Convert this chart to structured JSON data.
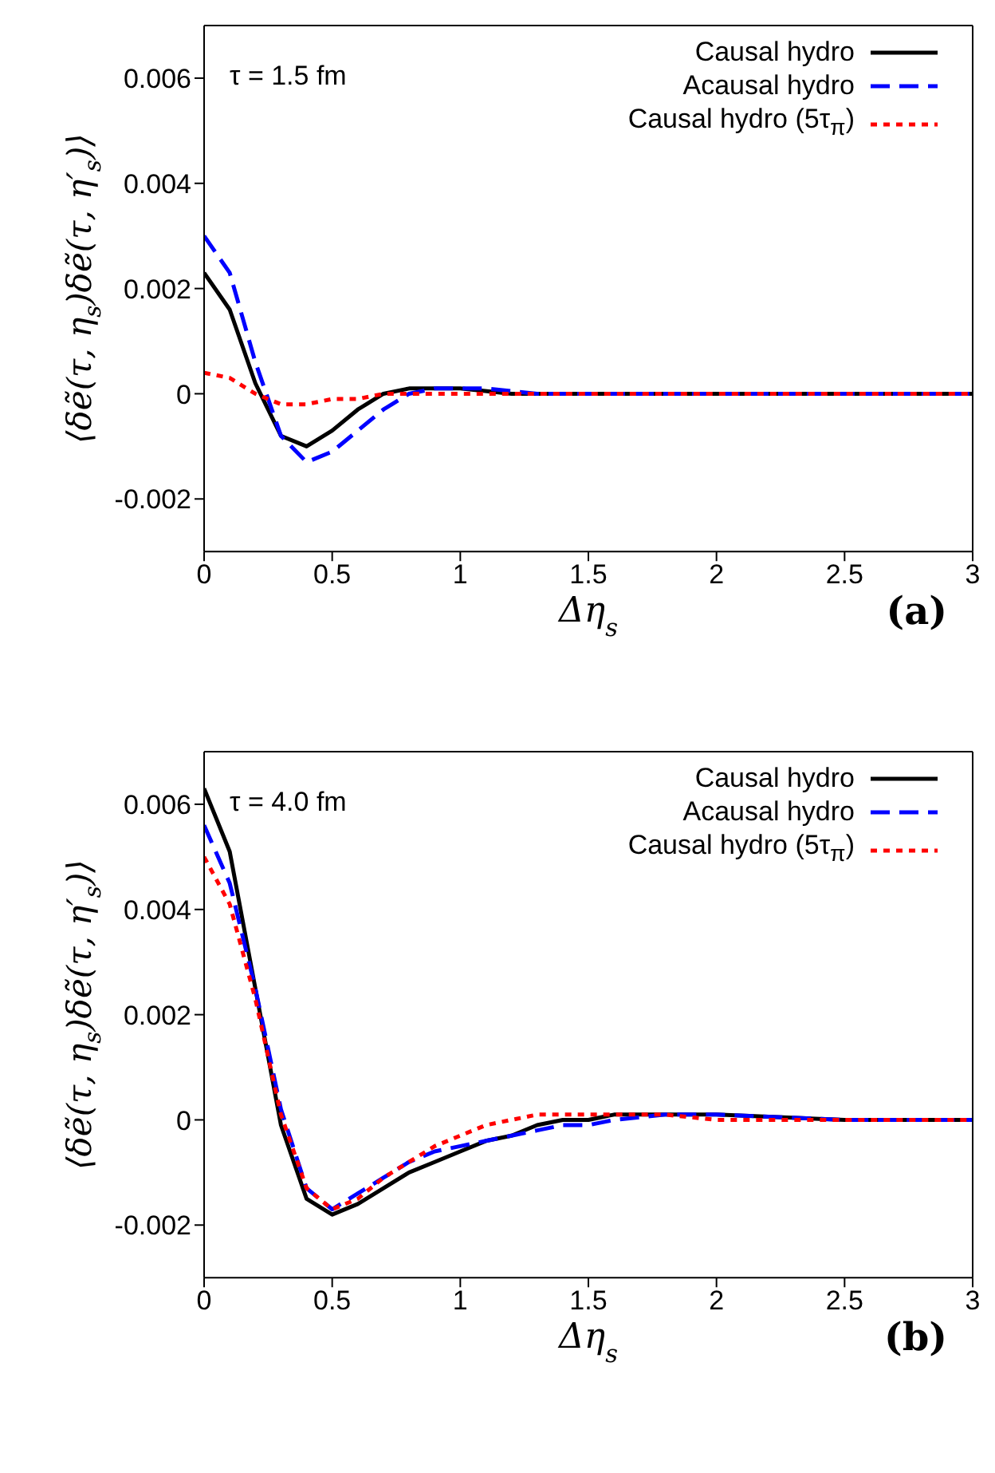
{
  "chart_data": [
    {
      "type": "line",
      "xlabel": "Δη$_{s}$",
      "ylabel": "⟨δẽ(τ, η$_{s}$)δẽ(τ, η′$_{s}$)⟩",
      "annotations": [
        "τ = 1.5 fm",
        "(a)"
      ],
      "xlim": [
        0,
        3
      ],
      "ylim": [
        -0.003,
        0.007
      ],
      "xticks": [
        0,
        0.5,
        1,
        1.5,
        2,
        2.5,
        3
      ],
      "yticks": [
        -0.002,
        0,
        0.002,
        0.004,
        0.006
      ],
      "grid": false,
      "legend": "top right",
      "marker": "none",
      "series": [
        {
          "name": "Causal hydro",
          "color": "#000000",
          "line_style": "solid",
          "x": [
            0,
            0.1,
            0.2,
            0.3,
            0.4,
            0.5,
            0.6,
            0.7,
            0.8,
            0.9,
            1.0,
            1.2,
            1.5,
            2,
            2.5,
            3
          ],
          "values": [
            0.0023,
            0.0016,
            0.0002,
            -0.0008,
            -0.001,
            -0.0007,
            -0.0003,
            0,
            0.0001,
            0.0001,
            0.0001,
            0,
            0,
            0,
            0,
            0
          ]
        },
        {
          "name": "Acausal hydro",
          "color": "#0000ff",
          "line_style": "dashed",
          "x": [
            0,
            0.1,
            0.2,
            0.3,
            0.4,
            0.5,
            0.6,
            0.7,
            0.8,
            0.9,
            1.0,
            1.1,
            1.3,
            1.5,
            2,
            2.5,
            3
          ],
          "values": [
            0.003,
            0.0023,
            0.0006,
            -0.0008,
            -0.0013,
            -0.0011,
            -0.0007,
            -0.0003,
            0,
            0.0001,
            0.0001,
            0.0001,
            0,
            0,
            0,
            0,
            0
          ]
        },
        {
          "name": "Causal hydro (5τ$_{π}$)",
          "color": "#ff0000",
          "line_style": "dotted",
          "x": [
            0,
            0.1,
            0.2,
            0.3,
            0.4,
            0.5,
            0.6,
            0.7,
            0.8,
            1.0,
            1.5,
            2,
            2.5,
            3
          ],
          "values": [
            0.0004,
            0.0003,
            0,
            -0.0002,
            -0.0002,
            -0.0001,
            -0.0001,
            0,
            0,
            0,
            0,
            0,
            0,
            0
          ]
        }
      ]
    },
    {
      "type": "line",
      "xlabel": "Δη$_{s}$",
      "ylabel": "⟨δẽ(τ, η$_{s}$)δẽ(τ, η′$_{s}$)⟩",
      "annotations": [
        "τ = 4.0 fm",
        "(b)"
      ],
      "xlim": [
        0,
        3
      ],
      "ylim": [
        -0.003,
        0.007
      ],
      "xticks": [
        0,
        0.5,
        1,
        1.5,
        2,
        2.5,
        3
      ],
      "yticks": [
        -0.002,
        0,
        0.002,
        0.004,
        0.006
      ],
      "grid": false,
      "legend": "top right",
      "marker": "none",
      "series": [
        {
          "name": "Causal hydro",
          "color": "#000000",
          "line_style": "solid",
          "x": [
            0,
            0.1,
            0.2,
            0.3,
            0.4,
            0.5,
            0.6,
            0.7,
            0.8,
            0.9,
            1.0,
            1.1,
            1.2,
            1.3,
            1.4,
            1.5,
            1.6,
            1.8,
            2.0,
            2.5,
            3
          ],
          "values": [
            0.0063,
            0.0051,
            0.0025,
            -0.0001,
            -0.0015,
            -0.0018,
            -0.0016,
            -0.0013,
            -0.001,
            -0.0008,
            -0.0006,
            -0.0004,
            -0.0003,
            -0.0001,
            0,
            0,
            0.0001,
            0.0001,
            0.0001,
            0,
            0
          ]
        },
        {
          "name": "Acausal hydro",
          "color": "#0000ff",
          "line_style": "dashed",
          "x": [
            0,
            0.1,
            0.2,
            0.3,
            0.4,
            0.5,
            0.6,
            0.7,
            0.8,
            0.9,
            1.0,
            1.1,
            1.2,
            1.3,
            1.4,
            1.5,
            1.6,
            1.8,
            2.0,
            2.5,
            3
          ],
          "values": [
            0.0056,
            0.0045,
            0.0025,
            0.0002,
            -0.0013,
            -0.0017,
            -0.0014,
            -0.0011,
            -0.0008,
            -0.0006,
            -0.0005,
            -0.0004,
            -0.0003,
            -0.0002,
            -0.0001,
            -0.0001,
            0,
            0.0001,
            0.0001,
            0,
            0
          ]
        },
        {
          "name": "Causal hydro (5τ$_{π}$)",
          "color": "#ff0000",
          "line_style": "dotted",
          "x": [
            0,
            0.1,
            0.2,
            0.3,
            0.4,
            0.5,
            0.6,
            0.7,
            0.8,
            0.9,
            1.0,
            1.1,
            1.2,
            1.3,
            1.4,
            1.5,
            1.6,
            1.8,
            2.0,
            2.5,
            3
          ],
          "values": [
            0.005,
            0.0041,
            0.0023,
            0.0001,
            -0.0013,
            -0.0017,
            -0.0015,
            -0.0011,
            -0.0008,
            -0.0005,
            -0.0003,
            -0.0001,
            0,
            0.0001,
            0.0001,
            0.0001,
            0.0001,
            0.0001,
            0,
            0,
            0
          ]
        }
      ]
    }
  ]
}
